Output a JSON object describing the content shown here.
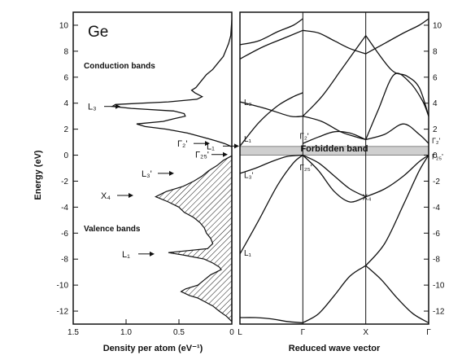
{
  "chart_data": [
    {
      "type": "area",
      "panel": "density-of-states",
      "title": "Ge",
      "xlabel": "Density per atom (eV⁻¹)",
      "ylabel": "Energy (eV)",
      "xlim": [
        1.5,
        0
      ],
      "ylim": [
        -13,
        11
      ],
      "x_ticks": [
        "1.5",
        "1.0",
        "0.5",
        "0"
      ],
      "x_tick_values": [
        1.5,
        1.0,
        0.5,
        0
      ],
      "y_ticks": [
        "10",
        "8",
        "6",
        "4",
        "2",
        "0",
        "-2",
        "-4",
        "-6",
        "-8",
        "-10",
        "-12"
      ],
      "y_tick_values": [
        10,
        8,
        6,
        4,
        2,
        0,
        -2,
        -4,
        -6,
        -8,
        -10,
        -12
      ],
      "region_labels": [
        "Conduction bands",
        "Valence bands"
      ],
      "conduction_dos": {
        "energy": [
          10.4,
          9.2,
          8.6,
          8.2,
          7.6,
          7.2,
          6.6,
          6.2,
          5.6,
          5.2,
          5.0,
          4.8,
          4.5,
          4.3,
          4.1,
          3.9,
          3.75,
          3.6,
          3.4,
          3.2,
          3.0,
          2.8,
          2.6,
          2.4,
          2.2,
          2.0,
          1.7,
          1.4,
          1.1,
          0.9,
          0.8,
          0.72,
          0.65
        ],
        "density": [
          0.0,
          0.01,
          0.03,
          0.05,
          0.08,
          0.12,
          0.18,
          0.24,
          0.3,
          0.34,
          0.38,
          0.35,
          0.28,
          0.33,
          0.6,
          1.1,
          1.13,
          0.95,
          0.55,
          0.45,
          0.44,
          0.55,
          0.65,
          0.9,
          0.82,
          0.62,
          0.42,
          0.28,
          0.15,
          0.07,
          0.04,
          0.02,
          0.0
        ]
      },
      "valence_dos": {
        "energy": [
          -0.05,
          -0.4,
          -0.8,
          -1.2,
          -1.6,
          -2.0,
          -2.4,
          -2.8,
          -3.2,
          -3.6,
          -4.0,
          -4.4,
          -4.8,
          -5.2,
          -5.6,
          -6.0,
          -6.4,
          -6.8,
          -7.2,
          -7.5,
          -7.7,
          -8.0,
          -8.3,
          -8.6,
          -8.8,
          -9.2,
          -9.6,
          -10.0,
          -10.3,
          -10.5,
          -10.8,
          -11.0,
          -11.3,
          -11.6,
          -12.0,
          -12.4,
          -12.8
        ],
        "density": [
          0.0,
          0.08,
          0.14,
          0.22,
          0.28,
          0.36,
          0.46,
          0.62,
          0.72,
          0.6,
          0.5,
          0.45,
          0.36,
          0.3,
          0.26,
          0.24,
          0.2,
          0.18,
          0.23,
          0.6,
          0.45,
          0.26,
          0.18,
          0.12,
          0.1,
          0.2,
          0.26,
          0.32,
          0.44,
          0.48,
          0.4,
          0.32,
          0.25,
          0.18,
          0.12,
          0.05,
          0.0
        ]
      },
      "annotations": [
        {
          "label": "L₃",
          "energy": 3.75
        },
        {
          "label": "Γ₂'",
          "energy": 0.9
        },
        {
          "label": "L₁",
          "energy": 0.7
        },
        {
          "label": "Γ₂₅'",
          "energy": 0.05
        },
        {
          "label": "L₃'",
          "energy": -1.4
        },
        {
          "label": "X₄",
          "energy": -3.1
        },
        {
          "label": "L₁",
          "energy": -7.6
        }
      ]
    },
    {
      "type": "line",
      "panel": "band-structure",
      "xlabel": "Reduced wave vector",
      "ylim": [
        -13,
        11
      ],
      "k_points": [
        "L",
        "Γ",
        "X",
        "Γ"
      ],
      "k_positions": [
        0,
        1,
        2,
        3
      ],
      "y_ticks": [
        "10",
        "8",
        "6",
        "4",
        "2",
        "0",
        "-2",
        "-4",
        "-6",
        "-8",
        "-10",
        "-12"
      ],
      "y_tick_values": [
        10,
        8,
        6,
        4,
        2,
        0,
        -2,
        -4,
        -6,
        -8,
        -10,
        -12
      ],
      "gap_label": "Forbidden band",
      "gap_range": [
        0.0,
        0.67
      ],
      "right_labels": [
        "Γ₂'",
        "Γ₂₅'"
      ],
      "point_labels": [
        {
          "label": "L₃",
          "k": 0.0,
          "energy": 4.1
        },
        {
          "label": "L₁",
          "k": 0.0,
          "energy": 1.3
        },
        {
          "label": "L₃'",
          "k": 0.0,
          "energy": -1.5
        },
        {
          "label": "L₁",
          "k": 0.0,
          "energy": -7.5
        },
        {
          "label": "Γ₂'",
          "k": 1.0,
          "energy": 1.5
        },
        {
          "label": "Γ₂₅'",
          "k": 1.0,
          "energy": -0.9
        },
        {
          "label": "X₄",
          "k": 2.0,
          "energy": -3.2
        }
      ],
      "series": [
        {
          "x": [
            0,
            0.25,
            0.5,
            0.75,
            1.0
          ],
          "y": [
            -12.5,
            -12.5,
            -12.6,
            -12.8,
            -12.9
          ]
        },
        {
          "x": [
            0,
            0.3,
            0.6,
            0.85,
            1.0
          ],
          "y": [
            -7.6,
            -5.0,
            -2.3,
            -0.6,
            0.0
          ]
        },
        {
          "x": [
            0,
            0.25,
            0.5,
            0.75,
            1.0
          ],
          "y": [
            -1.4,
            -1.0,
            -0.5,
            -0.1,
            0.0
          ]
        },
        {
          "x": [
            0,
            0.3,
            0.6,
            0.85,
            1.0
          ],
          "y": [
            0.7,
            2.5,
            3.8,
            4.5,
            4.8
          ]
        },
        {
          "x": [
            0,
            0.4,
            0.8,
            1.0
          ],
          "y": [
            4.1,
            3.6,
            3.0,
            3.0
          ]
        },
        {
          "x": [
            0,
            0.35,
            0.7,
            1.0
          ],
          "y": [
            7.4,
            8.3,
            9.0,
            9.6
          ]
        },
        {
          "x": [
            0,
            0.3,
            0.6,
            0.85,
            1.0
          ],
          "y": [
            8.5,
            8.8,
            9.5,
            10.0,
            10.5
          ]
        },
        {
          "x": [
            1.0,
            1.25,
            1.5,
            1.75,
            2.0
          ],
          "y": [
            -12.9,
            -12.2,
            -10.8,
            -9.3,
            -8.5
          ]
        },
        {
          "x": [
            1.0,
            1.25,
            1.5,
            1.75,
            2.0
          ],
          "y": [
            0.0,
            -1.2,
            -2.8,
            -3.6,
            -3.2
          ]
        },
        {
          "x": [
            1.0,
            1.25,
            1.5,
            1.75,
            2.0
          ],
          "y": [
            0.0,
            -0.6,
            -1.6,
            -2.6,
            -3.2
          ]
        },
        {
          "x": [
            1.0,
            1.25,
            1.5,
            1.75,
            2.0
          ],
          "y": [
            0.9,
            1.4,
            1.8,
            1.7,
            1.2
          ]
        },
        {
          "x": [
            1.0,
            1.3,
            1.6,
            1.85,
            2.0
          ],
          "y": [
            3.0,
            4.5,
            6.5,
            8.2,
            9.2
          ]
        },
        {
          "x": [
            1.0,
            1.3,
            1.6,
            1.85,
            2.0
          ],
          "y": [
            3.0,
            2.6,
            1.8,
            1.4,
            1.2
          ]
        },
        {
          "x": [
            1.0,
            1.25,
            1.5,
            1.75,
            2.0
          ],
          "y": [
            9.6,
            9.4,
            8.8,
            8.2,
            7.8
          ]
        },
        {
          "x": [
            2.0,
            2.25,
            2.5,
            2.75,
            3.0
          ],
          "y": [
            -8.5,
            -9.6,
            -11.0,
            -12.2,
            -12.9
          ]
        },
        {
          "x": [
            2.0,
            2.3,
            2.6,
            2.85,
            3.0
          ],
          "y": [
            -8.5,
            -6.8,
            -3.8,
            -1.2,
            0.0
          ]
        },
        {
          "x": [
            2.0,
            2.3,
            2.6,
            2.85,
            3.0
          ],
          "y": [
            -3.2,
            -2.6,
            -1.6,
            -0.5,
            0.0
          ]
        },
        {
          "x": [
            2.0,
            2.3,
            2.6,
            2.85,
            3.0
          ],
          "y": [
            1.2,
            1.6,
            2.4,
            1.6,
            0.9
          ]
        },
        {
          "x": [
            2.0,
            2.2,
            2.45,
            2.7,
            2.9,
            3.0
          ],
          "y": [
            1.2,
            3.5,
            6.2,
            5.6,
            4.2,
            3.0
          ]
        },
        {
          "x": [
            2.0,
            2.4,
            2.65,
            2.85,
            3.0
          ],
          "y": [
            9.2,
            6.6,
            6.1,
            5.2,
            3.0
          ]
        },
        {
          "x": [
            2.0,
            2.3,
            2.6,
            2.85,
            3.0
          ],
          "y": [
            7.8,
            8.6,
            9.4,
            10.0,
            10.5
          ]
        }
      ]
    }
  ]
}
